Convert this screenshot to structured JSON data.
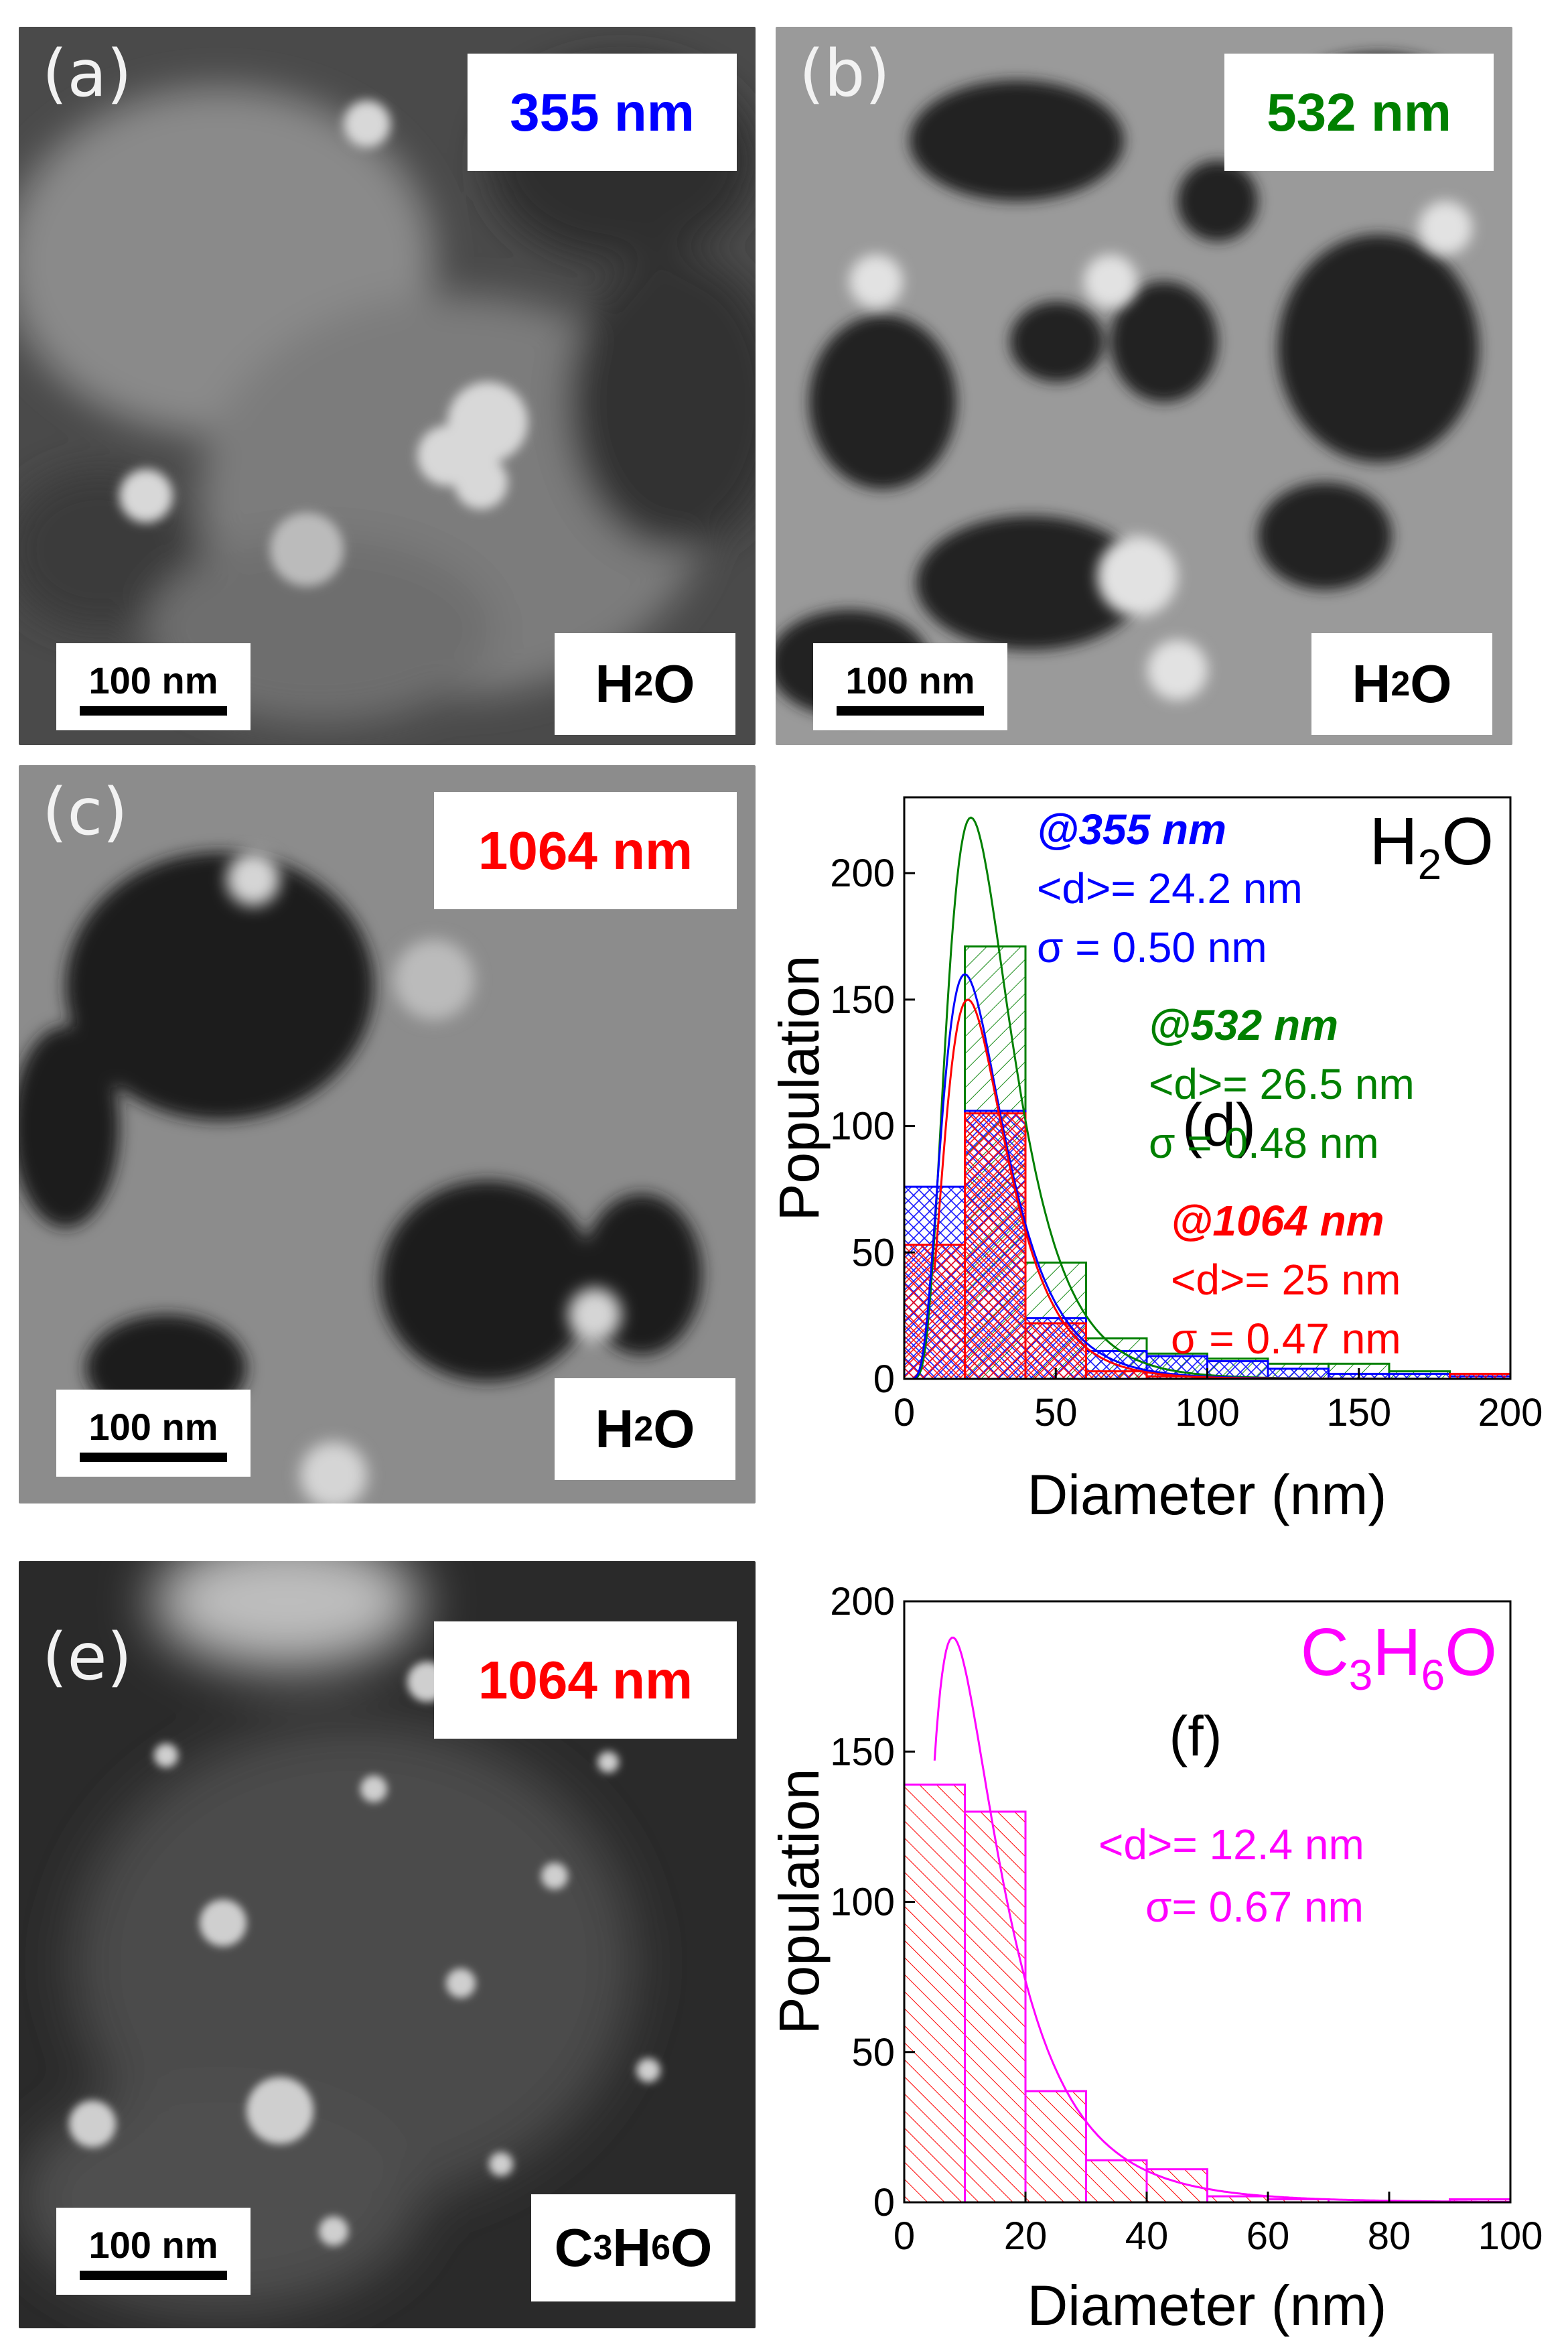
{
  "panels": [
    {
      "label": "(a)",
      "wavelength": "355 nm",
      "wavelength_color": "#0000ff",
      "solvent": "H₂O",
      "scale": "100 nm"
    },
    {
      "label": "(b)",
      "wavelength": "532 nm",
      "wavelength_color": "#008000",
      "solvent": "H₂O",
      "scale": "100 nm"
    },
    {
      "label": "(c)",
      "wavelength": "1064 nm",
      "wavelength_color": "#ff0000",
      "solvent": "H₂O",
      "scale": "100 nm"
    },
    {
      "label": "(e)",
      "wavelength": "1064 nm",
      "wavelength_color": "#ff0000",
      "solvent": "C₃H₆O",
      "scale": "100 nm"
    }
  ],
  "chart_data": [
    {
      "type": "bar",
      "panel_label": "(d)",
      "solvent": "H₂O",
      "xlabel": "Diameter (nm)",
      "ylabel": "Population",
      "xlim": [
        0,
        200
      ],
      "ylim": [
        0,
        230
      ],
      "xticks": [
        0,
        50,
        100,
        150,
        200
      ],
      "yticks": [
        0,
        50,
        100,
        150,
        200
      ],
      "bin_width": 20,
      "series": [
        {
          "name": "@355 nm",
          "color": "#0000ff",
          "mean": "<d>= 24.2 nm",
          "sigma": "σ = 0.50 nm",
          "bins": [
            0,
            20,
            40,
            60,
            80,
            100,
            120,
            140,
            160,
            180
          ],
          "values": [
            76,
            106,
            24,
            11,
            9,
            7,
            4,
            2,
            2,
            1
          ],
          "fit": {
            "peak_x": 20,
            "peak_y": 160
          }
        },
        {
          "name": "@532 nm",
          "color": "#008000",
          "mean": "<d>= 26.5 nm",
          "sigma": "σ = 0.48 nm",
          "bins": [
            20,
            40,
            60,
            80,
            100,
            120,
            140,
            160
          ],
          "values": [
            171,
            46,
            16,
            10,
            8,
            6,
            6,
            3
          ],
          "fit": {
            "peak_x": 22,
            "peak_y": 222
          }
        },
        {
          "name": "@1064 nm",
          "color": "#ff0000",
          "mean": "<d>= 25 nm",
          "sigma": "σ = 0.47 nm",
          "bins": [
            0,
            20,
            40,
            60,
            80,
            180
          ],
          "values": [
            53,
            105,
            22,
            3,
            1,
            2
          ],
          "fit": {
            "peak_x": 21,
            "peak_y": 150
          }
        }
      ]
    },
    {
      "type": "bar",
      "panel_label": "(f)",
      "solvent": "C₃H₆O",
      "xlabel": "Diameter (nm)",
      "ylabel": "Population",
      "xlim": [
        0,
        100
      ],
      "ylim": [
        0,
        200
      ],
      "xticks": [
        0,
        20,
        40,
        60,
        80,
        100
      ],
      "yticks": [
        0,
        50,
        100,
        150,
        200
      ],
      "bin_width": 10,
      "series": [
        {
          "color": "#ff00ff",
          "mean": "<d>= 12.4 nm",
          "sigma": "σ= 0.67 nm",
          "bins": [
            0,
            10,
            20,
            30,
            40,
            50,
            60,
            70,
            80,
            90
          ],
          "values": [
            139,
            130,
            37,
            14,
            11,
            2,
            1,
            0,
            0,
            1
          ],
          "fit": {
            "peak_x": 8,
            "peak_y": 188
          }
        }
      ]
    }
  ]
}
